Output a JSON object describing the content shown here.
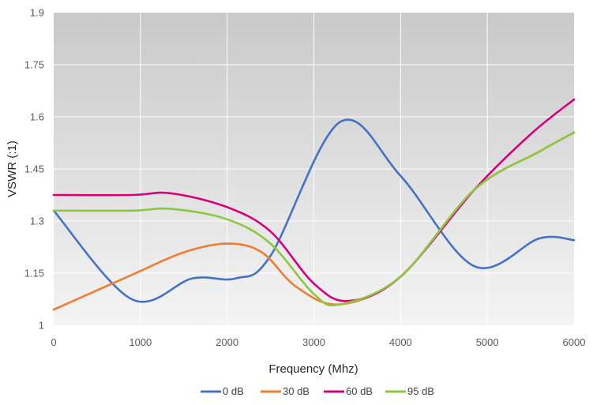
{
  "chart_data": {
    "type": "line",
    "title": "",
    "xlabel": "Frequency (Mhz)",
    "ylabel": "VSWR (:1)",
    "xlim": [
      0,
      6000
    ],
    "ylim": [
      1,
      1.9
    ],
    "x_ticks": [
      "0",
      "1000",
      "2000",
      "3000",
      "4000",
      "5000",
      "6000"
    ],
    "y_ticks": [
      "1",
      "1.15",
      "1.3",
      "1.45",
      "1.6",
      "1.75",
      "1.9"
    ],
    "grid": true,
    "smooth": true,
    "legend_position": "bottom",
    "series": [
      {
        "name": "0 dB",
        "color": "#4472c4",
        "x": [
          0,
          900,
          1600,
          2100,
          2500,
          3300,
          4000,
          4850,
          5600,
          6000
        ],
        "y": [
          1.33,
          1.075,
          1.135,
          1.135,
          1.2,
          1.585,
          1.43,
          1.17,
          1.25,
          1.245
        ]
      },
      {
        "name": "30 dB",
        "color": "#ed7d31",
        "x": [
          0,
          900,
          1500,
          2000,
          2400,
          2800,
          3300,
          4000,
          4850,
          5600,
          6000
        ],
        "y": [
          1.045,
          1.145,
          1.21,
          1.235,
          1.21,
          1.11,
          1.06,
          1.14,
          1.39,
          1.5,
          1.555
        ]
      },
      {
        "name": "60 dB",
        "color": "#d6007e",
        "x": [
          0,
          900,
          1350,
          2000,
          2500,
          3000,
          3400,
          4000,
          4850,
          5500,
          6000
        ],
        "y": [
          1.375,
          1.375,
          1.38,
          1.34,
          1.27,
          1.12,
          1.07,
          1.14,
          1.39,
          1.55,
          1.65
        ]
      },
      {
        "name": "95 dB",
        "color": "#8dc63f",
        "x": [
          0,
          900,
          1350,
          2000,
          2500,
          3000,
          3300,
          4000,
          4850,
          5600,
          6000
        ],
        "y": [
          1.33,
          1.33,
          1.335,
          1.305,
          1.235,
          1.09,
          1.06,
          1.14,
          1.39,
          1.5,
          1.555
        ]
      }
    ]
  }
}
